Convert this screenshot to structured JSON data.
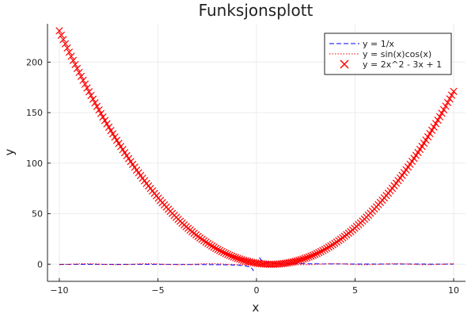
{
  "chart_data": {
    "type": "line",
    "title": "Funksjonsplott",
    "xlabel": "x",
    "ylabel": "y",
    "xlim": [
      -10.6,
      10.6
    ],
    "ylim": [
      -17,
      238
    ],
    "xticks": [
      -10,
      -5,
      0,
      5,
      10
    ],
    "xtick_labels": [
      "−10",
      "−5",
      "0",
      "5",
      "10"
    ],
    "yticks": [
      0,
      50,
      100,
      150,
      200
    ],
    "ytick_labels": [
      "0",
      "50",
      "100",
      "150",
      "200"
    ],
    "grid": true,
    "legend_position": "top-right",
    "series": [
      {
        "name": "y = 1/x",
        "kind": "line",
        "style": "dashed",
        "color": "#0000ff",
        "formula": "1/x",
        "x_range": [
          -10,
          10
        ],
        "samples": 400,
        "clip": [
          -10,
          10
        ]
      },
      {
        "name": "y = sin(x)cos(x)",
        "kind": "line",
        "style": "dotted",
        "color": "#ff0000",
        "formula": "sin(x)cos(x)",
        "x_range": [
          -10,
          10
        ],
        "samples": 400
      },
      {
        "name": "y = 2x^2 - 3x + 1",
        "kind": "scatter",
        "marker": "x",
        "color": "#ff0000",
        "formula": "2x^2 - 3x + 1",
        "x_range": [
          -10,
          10
        ],
        "samples": 200
      }
    ]
  }
}
